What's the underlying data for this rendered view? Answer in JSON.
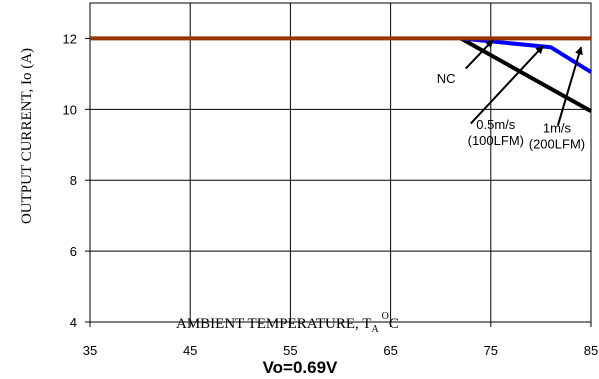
{
  "chart_data": {
    "type": "line",
    "title": "Vo=0.69V",
    "xlabel_main": "AMBIENT TEMPERATURE, T",
    "xlabel_sub": "A",
    "xlabel_sup": "O",
    "xlabel_end": "C",
    "ylabel": "OUTPUT CURRENT, Io  (A)",
    "xlim": [
      35,
      85
    ],
    "ylim": [
      4,
      13
    ],
    "xticks": [
      35,
      45,
      55,
      65,
      75,
      85
    ],
    "yticks": [
      4,
      6,
      8,
      10,
      12
    ],
    "grid": true,
    "series": [
      {
        "name": "NC",
        "color": "#000000",
        "x": [
          72,
          85
        ],
        "y": [
          12,
          9.95
        ]
      },
      {
        "name": "0.5m/s (100LFM)",
        "color": "#0000ff",
        "x": [
          72,
          81,
          85
        ],
        "y": [
          12,
          11.75,
          11.05
        ]
      },
      {
        "name": "1m/s (200LFM)",
        "color": "#993300",
        "x": [
          35,
          85
        ],
        "y": [
          12,
          12
        ]
      }
    ],
    "annotations": [
      {
        "lines": [
          "NC"
        ],
        "anchor": "start",
        "text_x": 69.6,
        "text_y": 10.75,
        "arrow_from": [
          72.5,
          11.15
        ],
        "arrow_to": [
          75.2,
          11.95
        ]
      },
      {
        "lines": [
          "0.5m/s",
          "(100LFM)"
        ],
        "anchor": "middle",
        "text_x": 75.5,
        "text_y": 9.45,
        "arrow_from": [
          73.0,
          9.6
        ],
        "arrow_to": [
          80.2,
          11.78
        ]
      },
      {
        "lines": [
          "1m/s",
          "(200LFM)"
        ],
        "anchor": "middle",
        "text_x": 81.6,
        "text_y": 9.35,
        "arrow_from": [
          81.7,
          9.55
        ],
        "arrow_to": [
          84.0,
          11.75
        ]
      }
    ]
  }
}
